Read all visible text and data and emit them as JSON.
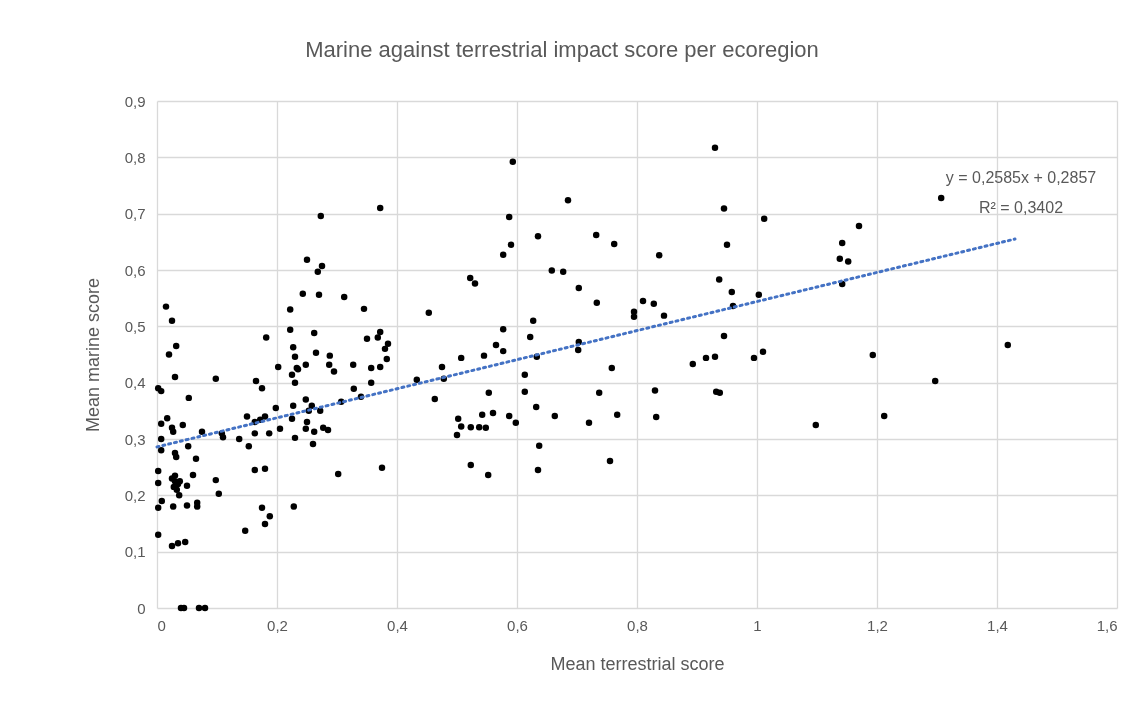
{
  "chart_data": {
    "type": "scatter",
    "title": "Marine against terrestrial impact score per ecoregion",
    "xlabel": "Mean terrestrial score",
    "ylabel": "Mean marine score",
    "xlim": [
      0,
      1.6
    ],
    "ylim": [
      0,
      0.9
    ],
    "xticks": [
      0,
      {
        "value": 0.2,
        "label": "0,2"
      },
      {
        "value": 0.4,
        "label": "0,4"
      },
      {
        "value": 0.6,
        "label": "0,6"
      },
      {
        "value": 0.8,
        "label": "0,8"
      },
      1,
      {
        "value": 1.2,
        "label": "1,2"
      },
      {
        "value": 1.4,
        "label": "1,4"
      },
      {
        "value": 1.6,
        "label": "1,6"
      }
    ],
    "yticks": [
      0,
      {
        "value": 0.1,
        "label": "0,1"
      },
      {
        "value": 0.2,
        "label": "0,2"
      },
      {
        "value": 0.3,
        "label": "0,3"
      },
      {
        "value": 0.4,
        "label": "0,4"
      },
      {
        "value": 0.5,
        "label": "0,5"
      },
      {
        "value": 0.6,
        "label": "0,6"
      },
      {
        "value": 0.7,
        "label": "0,7"
      },
      {
        "value": 0.8,
        "label": "0,8"
      },
      {
        "value": 0.9,
        "label": "0,9"
      }
    ],
    "grid": true,
    "marker": "circle",
    "annotations": [
      "y = 0,2585x + 0,2857",
      "R² = 0,3402"
    ],
    "series": [
      {
        "color": "#000000",
        "x": [
          0.015,
          0.025,
          0.032,
          0.02,
          0.03,
          0.002,
          0.007,
          0.053,
          0.017,
          0.007,
          0.025,
          0.027,
          0.043,
          0.075,
          0.007,
          0.007,
          0.052,
          0.03,
          0.032,
          0.065,
          0.002,
          0.002,
          0.025,
          0.03,
          0.035,
          0.028,
          0.033,
          0.038,
          0.03,
          0.06,
          0.05,
          0.037,
          0.008,
          0.002,
          0.027,
          0.05,
          0.067,
          0.067,
          0.002,
          0.025,
          0.035,
          0.047,
          0.04,
          0.045,
          0.07,
          0.08,
          0.098,
          0.11,
          0.108,
          0.098,
          0.103,
          0.137,
          0.153,
          0.15,
          0.163,
          0.172,
          0.18,
          0.163,
          0.187,
          0.163,
          0.18,
          0.165,
          0.175,
          0.182,
          0.202,
          0.198,
          0.205,
          0.175,
          0.188,
          0.18,
          0.147,
          0.228,
          0.222,
          0.222,
          0.227,
          0.23,
          0.233,
          0.225,
          0.23,
          0.227,
          0.225,
          0.23,
          0.273,
          0.372,
          0.25,
          0.275,
          0.268,
          0.243,
          0.27,
          0.312,
          0.345,
          0.453,
          0.262,
          0.372,
          0.368,
          0.35,
          0.385,
          0.38,
          0.383,
          0.265,
          0.288,
          0.287,
          0.295,
          0.248,
          0.235,
          0.327,
          0.357,
          0.372,
          0.357,
          0.328,
          0.34,
          0.307,
          0.433,
          0.475,
          0.478,
          0.463,
          0.248,
          0.258,
          0.253,
          0.272,
          0.25,
          0.248,
          0.262,
          0.277,
          0.285,
          0.26,
          0.302,
          0.375,
          0.593,
          0.685,
          0.587,
          0.635,
          0.732,
          0.762,
          0.837,
          0.59,
          0.577,
          0.522,
          0.53,
          0.658,
          0.677,
          0.703,
          0.733,
          0.81,
          0.828,
          0.795,
          0.795,
          0.845,
          0.627,
          0.577,
          0.622,
          0.565,
          0.577,
          0.703,
          0.702,
          0.507,
          0.545,
          0.633,
          0.758,
          0.613,
          0.613,
          0.553,
          0.737,
          0.83,
          0.632,
          0.502,
          0.507,
          0.5,
          0.523,
          0.537,
          0.548,
          0.542,
          0.56,
          0.587,
          0.598,
          0.663,
          0.72,
          0.767,
          0.832,
          0.637,
          0.755,
          0.523,
          0.552,
          0.635,
          0.93,
          0.945,
          1.012,
          0.95,
          1.17,
          1.142,
          1.138,
          1.152,
          1.142,
          0.937,
          0.958,
          0.96,
          1.003,
          0.945,
          0.893,
          0.915,
          0.93,
          0.995,
          1.01,
          1.193,
          0.932,
          0.938,
          1.098,
          1.212,
          1.418,
          1.297,
          1.307
        ],
        "values": [
          0.535,
          0.51,
          0.465,
          0.45,
          0.41,
          0.39,
          0.385,
          0.373,
          0.337,
          0.327,
          0.32,
          0.313,
          0.325,
          0.313,
          0.3,
          0.28,
          0.287,
          0.275,
          0.268,
          0.265,
          0.243,
          0.222,
          0.23,
          0.225,
          0.22,
          0.215,
          0.21,
          0.225,
          0.235,
          0.236,
          0.217,
          0.2,
          0.19,
          0.178,
          0.18,
          0.182,
          0.187,
          0.18,
          0.13,
          0.11,
          0.115,
          0.117,
          0,
          0,
          0,
          0,
          0.407,
          0.303,
          0.31,
          0.227,
          0.203,
          0.3,
          0.287,
          0.34,
          0.33,
          0.334,
          0.34,
          0.31,
          0.31,
          0.245,
          0.247,
          0.403,
          0.39,
          0.48,
          0.428,
          0.355,
          0.318,
          0.178,
          0.163,
          0.149,
          0.137,
          0.18,
          0.53,
          0.494,
          0.463,
          0.446,
          0.426,
          0.414,
          0.4,
          0.359,
          0.336,
          0.302,
          0.696,
          0.71,
          0.618,
          0.607,
          0.597,
          0.558,
          0.556,
          0.552,
          0.531,
          0.524,
          0.488,
          0.49,
          0.48,
          0.478,
          0.469,
          0.46,
          0.442,
          0.453,
          0.448,
          0.432,
          0.42,
          0.432,
          0.424,
          0.432,
          0.426,
          0.428,
          0.4,
          0.389,
          0.375,
          0.366,
          0.405,
          0.428,
          0.407,
          0.371,
          0.37,
          0.359,
          0.35,
          0.35,
          0.33,
          0.318,
          0.313,
          0.32,
          0.316,
          0.291,
          0.238,
          0.249,
          0.792,
          0.724,
          0.694,
          0.66,
          0.662,
          0.646,
          0.626,
          0.645,
          0.627,
          0.586,
          0.576,
          0.599,
          0.597,
          0.568,
          0.542,
          0.545,
          0.54,
          0.526,
          0.517,
          0.519,
          0.51,
          0.495,
          0.481,
          0.467,
          0.456,
          0.472,
          0.458,
          0.444,
          0.448,
          0.446,
          0.426,
          0.414,
          0.384,
          0.382,
          0.382,
          0.386,
          0.357,
          0.336,
          0.322,
          0.307,
          0.321,
          0.321,
          0.32,
          0.343,
          0.346,
          0.341,
          0.329,
          0.341,
          0.329,
          0.343,
          0.339,
          0.288,
          0.261,
          0.254,
          0.236,
          0.245,
          0.817,
          0.709,
          0.691,
          0.645,
          0.678,
          0.648,
          0.62,
          0.615,
          0.575,
          0.583,
          0.561,
          0.536,
          0.556,
          0.483,
          0.433,
          0.444,
          0.446,
          0.444,
          0.455,
          0.449,
          0.384,
          0.382,
          0.325,
          0.341,
          0.467,
          0.403,
          0.728
        ]
      },
      {
        "type": "line",
        "color": "#4472c4",
        "line_style": "dotted",
        "marker": "none",
        "x": [
          0,
          1.43
        ],
        "values": [
          0.286,
          0.655
        ]
      }
    ]
  }
}
